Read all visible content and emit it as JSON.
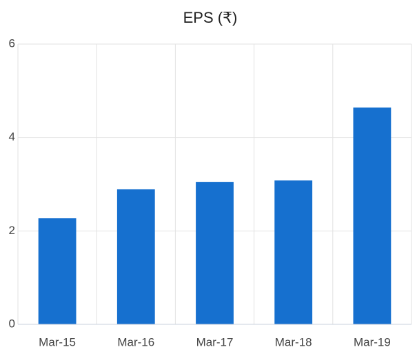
{
  "chart_data": {
    "type": "bar",
    "title": "EPS (₹)",
    "categories": [
      "Mar-15",
      "Mar-16",
      "Mar-17",
      "Mar-18",
      "Mar-19"
    ],
    "values": [
      2.27,
      2.89,
      3.05,
      3.08,
      4.64
    ],
    "color": "#1670cf",
    "ylim": [
      0,
      6
    ],
    "yticks": [
      0,
      2,
      4,
      6
    ],
    "grid": true
  }
}
